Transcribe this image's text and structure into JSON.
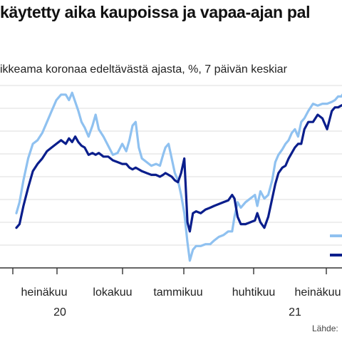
{
  "title": "käytetty aika kaupoissa ja vapaa-ajan pal",
  "subtitle": "ikkeama koronaa edeltävästä ajasta, %, 7 päivän keskiar",
  "source": "Lähde:",
  "colors": {
    "series_light": "#8fc1f0",
    "series_dark": "#0a1e8c",
    "grid": "#dcdcdc",
    "axis": "#333333"
  },
  "chart_data": {
    "type": "line",
    "title": "käytetty aika kaupoissa ja vapaa-ajan pal",
    "subtitle": "ikkeama koronaa edeltävästä ajasta, %, 7 päivän keskiar",
    "x_ticks": [
      "heinäkuu",
      "lokakuu",
      "tammikuu",
      "huhtikuu",
      "heinäkuu"
    ],
    "x_year_labels": [
      "20",
      "21"
    ],
    "grid": true,
    "legend": "bottom-right",
    "series": [
      {
        "color": "#8fc1f0",
        "values": [
          [
            "2020-06-01",
            0.3
          ],
          [
            "2020-06-05",
            0.36
          ],
          [
            "2020-06-10",
            0.48
          ],
          [
            "2020-06-16",
            0.6
          ],
          [
            "2020-06-22",
            0.68
          ],
          [
            "2020-06-28",
            0.7
          ],
          [
            "2020-07-04",
            0.74
          ],
          [
            "2020-07-10",
            0.8
          ],
          [
            "2020-07-16",
            0.86
          ],
          [
            "2020-07-22",
            0.92
          ],
          [
            "2020-07-28",
            0.95
          ],
          [
            "2020-08-03",
            0.95
          ],
          [
            "2020-08-07",
            0.92
          ],
          [
            "2020-08-11",
            0.96
          ],
          [
            "2020-08-15",
            0.91
          ],
          [
            "2020-08-19",
            0.86
          ],
          [
            "2020-08-23",
            0.8
          ],
          [
            "2020-08-27",
            0.77
          ],
          [
            "2020-09-01",
            0.72
          ],
          [
            "2020-09-06",
            0.78
          ],
          [
            "2020-09-10",
            0.84
          ],
          [
            "2020-09-14",
            0.76
          ],
          [
            "2020-09-20",
            0.72
          ],
          [
            "2020-09-26",
            0.67
          ],
          [
            "2020-10-02",
            0.62
          ],
          [
            "2020-10-08",
            0.63
          ],
          [
            "2020-10-14",
            0.68
          ],
          [
            "2020-10-19",
            0.64
          ],
          [
            "2020-10-23",
            0.7
          ],
          [
            "2020-10-27",
            0.78
          ],
          [
            "2020-10-31",
            0.8
          ],
          [
            "2020-11-04",
            0.66
          ],
          [
            "2020-11-08",
            0.6
          ],
          [
            "2020-11-14",
            0.58
          ],
          [
            "2020-11-20",
            0.56
          ],
          [
            "2020-11-26",
            0.57
          ],
          [
            "2020-12-01",
            0.56
          ],
          [
            "2020-12-05",
            0.62
          ],
          [
            "2020-12-08",
            0.66
          ],
          [
            "2020-12-12",
            0.68
          ],
          [
            "2020-12-16",
            0.6
          ],
          [
            "2020-12-20",
            0.52
          ],
          [
            "2020-12-24",
            0.48
          ],
          [
            "2020-12-28",
            0.4
          ],
          [
            "2021-01-01",
            0.3
          ],
          [
            "2021-01-05",
            0.14
          ],
          [
            "2021-01-08",
            0.04
          ],
          [
            "2021-01-12",
            0.1
          ],
          [
            "2021-01-16",
            0.12
          ],
          [
            "2021-01-22",
            0.12
          ],
          [
            "2021-01-28",
            0.13
          ],
          [
            "2021-02-03",
            0.13
          ],
          [
            "2021-02-08",
            0.15
          ],
          [
            "2021-02-14",
            0.17
          ],
          [
            "2021-02-20",
            0.18
          ],
          [
            "2021-02-26",
            0.2
          ],
          [
            "2021-03-03",
            0.2
          ],
          [
            "2021-03-06",
            0.28
          ],
          [
            "2021-03-10",
            0.36
          ],
          [
            "2021-03-14",
            0.33
          ],
          [
            "2021-03-20",
            0.36
          ],
          [
            "2021-03-26",
            0.38
          ],
          [
            "2021-04-01",
            0.4
          ],
          [
            "2021-04-04",
            0.34
          ],
          [
            "2021-04-08",
            0.42
          ],
          [
            "2021-04-13",
            0.38
          ],
          [
            "2021-04-18",
            0.4
          ],
          [
            "2021-04-23",
            0.48
          ],
          [
            "2021-04-27",
            0.58
          ],
          [
            "2021-05-01",
            0.62
          ],
          [
            "2021-05-06",
            0.65
          ],
          [
            "2021-05-10",
            0.68
          ],
          [
            "2021-05-14",
            0.7
          ],
          [
            "2021-05-18",
            0.74
          ],
          [
            "2021-05-22",
            0.76
          ],
          [
            "2021-05-26",
            0.72
          ],
          [
            "2021-05-30",
            0.8
          ],
          [
            "2021-06-03",
            0.82
          ],
          [
            "2021-06-08",
            0.86
          ],
          [
            "2021-06-14",
            0.9
          ],
          [
            "2021-06-20",
            0.89
          ],
          [
            "2021-06-26",
            0.9
          ],
          [
            "2021-07-02",
            0.9
          ],
          [
            "2021-07-08",
            0.91
          ],
          [
            "2021-07-12",
            0.92
          ],
          [
            "2021-07-16",
            0.94
          ],
          [
            "2021-07-20",
            0.94
          ],
          [
            "2021-07-25",
            0.97
          ]
        ]
      },
      {
        "color": "#0a1e8c",
        "values": [
          [
            "2020-06-01",
            0.22
          ],
          [
            "2020-06-05",
            0.24
          ],
          [
            "2020-06-10",
            0.34
          ],
          [
            "2020-06-16",
            0.44
          ],
          [
            "2020-06-22",
            0.53
          ],
          [
            "2020-06-28",
            0.57
          ],
          [
            "2020-07-04",
            0.6
          ],
          [
            "2020-07-10",
            0.64
          ],
          [
            "2020-07-16",
            0.66
          ],
          [
            "2020-07-22",
            0.68
          ],
          [
            "2020-07-28",
            0.7
          ],
          [
            "2020-08-03",
            0.68
          ],
          [
            "2020-08-07",
            0.71
          ],
          [
            "2020-08-11",
            0.69
          ],
          [
            "2020-08-15",
            0.72
          ],
          [
            "2020-08-19",
            0.69
          ],
          [
            "2020-08-23",
            0.67
          ],
          [
            "2020-08-27",
            0.66
          ],
          [
            "2020-09-01",
            0.62
          ],
          [
            "2020-09-06",
            0.63
          ],
          [
            "2020-09-10",
            0.62
          ],
          [
            "2020-09-14",
            0.63
          ],
          [
            "2020-09-20",
            0.61
          ],
          [
            "2020-09-26",
            0.61
          ],
          [
            "2020-10-02",
            0.59
          ],
          [
            "2020-10-08",
            0.58
          ],
          [
            "2020-10-14",
            0.57
          ],
          [
            "2020-10-19",
            0.57
          ],
          [
            "2020-10-23",
            0.55
          ],
          [
            "2020-10-27",
            0.54
          ],
          [
            "2020-10-31",
            0.55
          ],
          [
            "2020-11-04",
            0.54
          ],
          [
            "2020-11-08",
            0.53
          ],
          [
            "2020-11-14",
            0.52
          ],
          [
            "2020-11-20",
            0.51
          ],
          [
            "2020-11-26",
            0.51
          ],
          [
            "2020-12-01",
            0.5
          ],
          [
            "2020-12-05",
            0.51
          ],
          [
            "2020-12-08",
            0.52
          ],
          [
            "2020-12-12",
            0.51
          ],
          [
            "2020-12-16",
            0.5
          ],
          [
            "2020-12-20",
            0.48
          ],
          [
            "2020-12-24",
            0.47
          ],
          [
            "2020-12-28",
            0.52
          ],
          [
            "2021-01-01",
            0.6
          ],
          [
            "2021-01-05",
            0.25
          ],
          [
            "2021-01-08",
            0.2
          ],
          [
            "2021-01-12",
            0.3
          ],
          [
            "2021-01-16",
            0.31
          ],
          [
            "2021-01-22",
            0.3
          ],
          [
            "2021-01-28",
            0.32
          ],
          [
            "2021-02-03",
            0.33
          ],
          [
            "2021-02-08",
            0.34
          ],
          [
            "2021-02-14",
            0.35
          ],
          [
            "2021-02-20",
            0.36
          ],
          [
            "2021-02-26",
            0.37
          ],
          [
            "2021-03-03",
            0.4
          ],
          [
            "2021-03-06",
            0.38
          ],
          [
            "2021-03-10",
            0.28
          ],
          [
            "2021-03-14",
            0.24
          ],
          [
            "2021-03-20",
            0.24
          ],
          [
            "2021-03-26",
            0.25
          ],
          [
            "2021-04-01",
            0.26
          ],
          [
            "2021-04-04",
            0.3
          ],
          [
            "2021-04-08",
            0.25
          ],
          [
            "2021-04-13",
            0.22
          ],
          [
            "2021-04-18",
            0.28
          ],
          [
            "2021-04-23",
            0.38
          ],
          [
            "2021-04-27",
            0.46
          ],
          [
            "2021-05-01",
            0.52
          ],
          [
            "2021-05-06",
            0.55
          ],
          [
            "2021-05-10",
            0.56
          ],
          [
            "2021-05-14",
            0.6
          ],
          [
            "2021-05-18",
            0.63
          ],
          [
            "2021-05-22",
            0.66
          ],
          [
            "2021-05-26",
            0.68
          ],
          [
            "2021-05-30",
            0.68
          ],
          [
            "2021-06-03",
            0.76
          ],
          [
            "2021-06-08",
            0.8
          ],
          [
            "2021-06-14",
            0.8
          ],
          [
            "2021-06-20",
            0.84
          ],
          [
            "2021-06-26",
            0.82
          ],
          [
            "2021-07-02",
            0.76
          ],
          [
            "2021-07-08",
            0.86
          ],
          [
            "2021-07-12",
            0.88
          ],
          [
            "2021-07-16",
            0.88
          ],
          [
            "2021-07-20",
            0.89
          ],
          [
            "2021-07-25",
            0.9
          ]
        ]
      }
    ]
  }
}
